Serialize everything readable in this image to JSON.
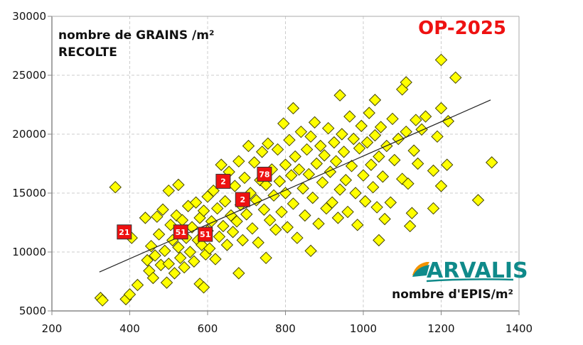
{
  "chart_data": {
    "type": "scatter",
    "title": "OP-2025",
    "ylabel": "nombre de GRAINS /m²",
    "ylabel_line2": "RECOLTE",
    "xlabel": "nombre d'EPIS/m²",
    "xlim": [
      200,
      1400
    ],
    "ylim": [
      5000,
      30000
    ],
    "xticks": [
      200,
      400,
      600,
      800,
      1000,
      1200,
      1400
    ],
    "yticks": [
      5000,
      10000,
      15000,
      20000,
      25000,
      30000
    ],
    "grid": true,
    "marker_color": "#ffff00",
    "marker_edge": "#444400",
    "label_color": "#ee1111",
    "logo_color": "#0f8a8a",
    "logo_text": "ARVALIS",
    "trendline": {
      "x": [
        322,
        1327
      ],
      "y": [
        8300,
        22900
      ]
    },
    "labeled_points": [
      {
        "label": "21",
        "x": 386,
        "y": 11700
      },
      {
        "label": "51",
        "x": 531,
        "y": 11700
      },
      {
        "label": "51",
        "x": 594,
        "y": 11500
      },
      {
        "label": "2",
        "x": 640,
        "y": 16000
      },
      {
        "label": "2",
        "x": 690,
        "y": 14450
      },
      {
        "label": "78",
        "x": 746,
        "y": 16600
      }
    ],
    "points": [
      [
        325,
        6100
      ],
      [
        330,
        5900
      ],
      [
        363,
        15500
      ],
      [
        390,
        6000
      ],
      [
        400,
        6400
      ],
      [
        405,
        11200
      ],
      [
        420,
        7200
      ],
      [
        440,
        12900
      ],
      [
        445,
        9300
      ],
      [
        450,
        8400
      ],
      [
        455,
        10500
      ],
      [
        460,
        7800
      ],
      [
        465,
        9700
      ],
      [
        470,
        13000
      ],
      [
        475,
        11500
      ],
      [
        480,
        8900
      ],
      [
        485,
        13600
      ],
      [
        490,
        10100
      ],
      [
        495,
        7400
      ],
      [
        500,
        15200
      ],
      [
        500,
        9000
      ],
      [
        505,
        12300
      ],
      [
        510,
        11000
      ],
      [
        515,
        8200
      ],
      [
        520,
        13100
      ],
      [
        525,
        15700
      ],
      [
        525,
        10400
      ],
      [
        530,
        9500
      ],
      [
        535,
        12700
      ],
      [
        540,
        8700
      ],
      [
        545,
        11200
      ],
      [
        550,
        13900
      ],
      [
        555,
        10000
      ],
      [
        560,
        12100
      ],
      [
        565,
        9200
      ],
      [
        570,
        14200
      ],
      [
        575,
        11000
      ],
      [
        580,
        7300
      ],
      [
        580,
        12900
      ],
      [
        585,
        10600
      ],
      [
        590,
        7000
      ],
      [
        590,
        13500
      ],
      [
        595,
        9800
      ],
      [
        600,
        14700
      ],
      [
        600,
        11800
      ],
      [
        605,
        10300
      ],
      [
        610,
        12600
      ],
      [
        615,
        15200
      ],
      [
        620,
        9400
      ],
      [
        625,
        13700
      ],
      [
        630,
        11300
      ],
      [
        635,
        17400
      ],
      [
        640,
        12200
      ],
      [
        645,
        14300
      ],
      [
        650,
        10600
      ],
      [
        655,
        16800
      ],
      [
        660,
        13100
      ],
      [
        665,
        11700
      ],
      [
        670,
        15600
      ],
      [
        675,
        12600
      ],
      [
        680,
        8200
      ],
      [
        680,
        17700
      ],
      [
        685,
        14000
      ],
      [
        690,
        11000
      ],
      [
        695,
        16300
      ],
      [
        700,
        13200
      ],
      [
        705,
        19000
      ],
      [
        710,
        15000
      ],
      [
        715,
        12000
      ],
      [
        720,
        17600
      ],
      [
        725,
        14400
      ],
      [
        730,
        10800
      ],
      [
        735,
        16100
      ],
      [
        740,
        18500
      ],
      [
        745,
        13600
      ],
      [
        750,
        9500
      ],
      [
        750,
        15700
      ],
      [
        755,
        19200
      ],
      [
        760,
        12700
      ],
      [
        765,
        17000
      ],
      [
        770,
        14800
      ],
      [
        775,
        11900
      ],
      [
        780,
        18700
      ],
      [
        785,
        16000
      ],
      [
        790,
        13400
      ],
      [
        795,
        20900
      ],
      [
        800,
        17400
      ],
      [
        800,
        15000
      ],
      [
        805,
        12100
      ],
      [
        810,
        19500
      ],
      [
        815,
        16500
      ],
      [
        820,
        22200
      ],
      [
        820,
        14100
      ],
      [
        825,
        18100
      ],
      [
        830,
        11200
      ],
      [
        835,
        17000
      ],
      [
        840,
        20200
      ],
      [
        845,
        15400
      ],
      [
        850,
        13100
      ],
      [
        855,
        18700
      ],
      [
        860,
        16600
      ],
      [
        865,
        10100
      ],
      [
        865,
        19800
      ],
      [
        870,
        14600
      ],
      [
        875,
        21000
      ],
      [
        880,
        17500
      ],
      [
        885,
        12400
      ],
      [
        890,
        19000
      ],
      [
        895,
        15900
      ],
      [
        900,
        18200
      ],
      [
        905,
        13700
      ],
      [
        910,
        20500
      ],
      [
        915,
        16800
      ],
      [
        920,
        14200
      ],
      [
        925,
        19300
      ],
      [
        930,
        17700
      ],
      [
        935,
        12900
      ],
      [
        940,
        23300
      ],
      [
        940,
        15300
      ],
      [
        945,
        20000
      ],
      [
        950,
        18500
      ],
      [
        955,
        16100
      ],
      [
        960,
        13400
      ],
      [
        965,
        21500
      ],
      [
        970,
        17300
      ],
      [
        975,
        19600
      ],
      [
        980,
        15000
      ],
      [
        985,
        12300
      ],
      [
        990,
        18800
      ],
      [
        995,
        20700
      ],
      [
        1000,
        16500
      ],
      [
        1005,
        14300
      ],
      [
        1010,
        19300
      ],
      [
        1015,
        21800
      ],
      [
        1020,
        17400
      ],
      [
        1025,
        15500
      ],
      [
        1030,
        22900
      ],
      [
        1030,
        19900
      ],
      [
        1035,
        13800
      ],
      [
        1040,
        11000
      ],
      [
        1040,
        18100
      ],
      [
        1045,
        20600
      ],
      [
        1050,
        16400
      ],
      [
        1055,
        12800
      ],
      [
        1060,
        19000
      ],
      [
        1070,
        14200
      ],
      [
        1075,
        21300
      ],
      [
        1080,
        17800
      ],
      [
        1090,
        19600
      ],
      [
        1100,
        23800
      ],
      [
        1100,
        16200
      ],
      [
        1110,
        24400
      ],
      [
        1110,
        20200
      ],
      [
        1115,
        15800
      ],
      [
        1120,
        12200
      ],
      [
        1125,
        13300
      ],
      [
        1130,
        18600
      ],
      [
        1135,
        21200
      ],
      [
        1140,
        17500
      ],
      [
        1150,
        20400
      ],
      [
        1160,
        21500
      ],
      [
        1180,
        16900
      ],
      [
        1180,
        13700
      ],
      [
        1190,
        19800
      ],
      [
        1200,
        26300
      ],
      [
        1200,
        22200
      ],
      [
        1200,
        15600
      ],
      [
        1215,
        17400
      ],
      [
        1218,
        21100
      ],
      [
        1237,
        24800
      ],
      [
        1295,
        14400
      ],
      [
        1330,
        17600
      ]
    ]
  }
}
